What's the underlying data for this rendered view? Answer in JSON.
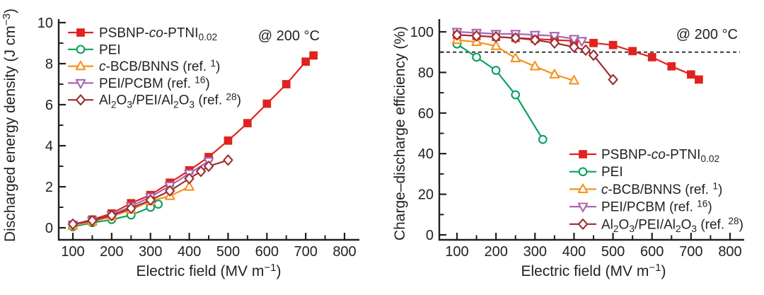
{
  "page": {
    "background": "#ffffff",
    "text_color": "#231f20"
  },
  "chart_data": [
    {
      "type": "line",
      "panel": "left",
      "annotation": "@ 200 °C",
      "xlabel": "Electric field (MV m⁻¹)",
      "xlabel_parts": [
        {
          "t": "Electric field (MV m"
        },
        {
          "t": "−1",
          "s": "sup"
        },
        {
          "t": ")"
        }
      ],
      "ylabel": "Discharged energy density (J cm⁻³)",
      "ylabel_parts": [
        {
          "t": "Discharged energy density (J cm"
        },
        {
          "t": "−3",
          "s": "sup"
        },
        {
          "t": ")"
        }
      ],
      "xlim": [
        100,
        800
      ],
      "ylim": [
        0,
        10
      ],
      "xticks": [
        100,
        200,
        300,
        400,
        500,
        600,
        700,
        800
      ],
      "xminorticks": [
        150,
        250,
        350,
        450,
        550,
        650,
        750
      ],
      "yticks": [
        0,
        2,
        4,
        6,
        8,
        10
      ],
      "yminorticks": [
        1,
        3,
        5,
        7,
        9
      ],
      "grid": false,
      "legend_position": "top-left",
      "series": [
        {
          "name": "PSBNP-co-PTNI0.02",
          "label_parts": [
            {
              "t": "PSBNP-"
            },
            {
              "t": "co",
              "i": true
            },
            {
              "t": "-PTNI"
            },
            {
              "t": "0.02",
              "s": "sub"
            }
          ],
          "color": "#e0231f",
          "marker": "square",
          "marker_filled": true,
          "x": [
            100,
            150,
            200,
            250,
            300,
            350,
            400,
            450,
            500,
            550,
            600,
            650,
            700,
            720
          ],
          "y": [
            0.15,
            0.4,
            0.7,
            1.2,
            1.6,
            2.2,
            2.8,
            3.45,
            4.25,
            5.1,
            6.05,
            7.0,
            8.1,
            8.4
          ]
        },
        {
          "name": "PEI",
          "label_parts": [
            {
              "t": "PEI"
            }
          ],
          "color": "#0aa061",
          "marker": "circle",
          "marker_filled": false,
          "x": [
            100,
            150,
            200,
            250,
            300,
            320
          ],
          "y": [
            0.05,
            0.25,
            0.4,
            0.62,
            1.0,
            1.15
          ]
        },
        {
          "name": "c-BCB/BNNS (ref. 1)",
          "label_parts": [
            {
              "t": "c",
              "i": true
            },
            {
              "t": "-BCB/BNNS (ref. "
            },
            {
              "t": "1",
              "s": "sup"
            },
            {
              "t": ")"
            }
          ],
          "color": "#f6921e",
          "marker": "triangle-up",
          "marker_filled": false,
          "x": [
            100,
            150,
            200,
            250,
            300,
            350,
            400
          ],
          "y": [
            0.1,
            0.3,
            0.55,
            0.88,
            1.3,
            1.55,
            2.0
          ]
        },
        {
          "name": "PEI/PCBM (ref. 16)",
          "label_parts": [
            {
              "t": "PEI/PCBM (ref. "
            },
            {
              "t": "16",
              "s": "sup"
            },
            {
              "t": ")"
            }
          ],
          "color": "#a868ae",
          "marker": "triangle-down",
          "marker_filled": false,
          "x": [
            100,
            150,
            200,
            250,
            300,
            350,
            400,
            450
          ],
          "y": [
            0.15,
            0.35,
            0.62,
            1.05,
            1.5,
            2.05,
            2.65,
            3.25
          ]
        },
        {
          "name": "Al2O3/PEI/Al2O3 (ref. 28)",
          "label_parts": [
            {
              "t": "Al"
            },
            {
              "t": "2",
              "s": "sub"
            },
            {
              "t": "O"
            },
            {
              "t": "3",
              "s": "sub"
            },
            {
              "t": "/PEI/Al"
            },
            {
              "t": "2",
              "s": "sub"
            },
            {
              "t": "O"
            },
            {
              "t": "3",
              "s": "sub"
            },
            {
              "t": " (ref. "
            },
            {
              "t": "28",
              "s": "sup"
            },
            {
              "t": ")"
            }
          ],
          "color": "#9c2e35",
          "marker": "diamond",
          "marker_filled": false,
          "x": [
            100,
            150,
            200,
            250,
            300,
            350,
            400,
            430,
            450,
            500
          ],
          "y": [
            0.18,
            0.35,
            0.6,
            0.95,
            1.35,
            1.8,
            2.4,
            2.75,
            3.0,
            3.3
          ]
        }
      ]
    },
    {
      "type": "line",
      "panel": "right",
      "annotation": "@ 200 °C",
      "xlabel": "Electric field (MV m⁻¹)",
      "xlabel_parts": [
        {
          "t": "Electric field (MV m"
        },
        {
          "t": "−1",
          "s": "sup"
        },
        {
          "t": ")"
        }
      ],
      "ylabel": "Charge–discharge efficiency (%)",
      "ylabel_parts": [
        {
          "t": "Charge–discharge efficiency (%)"
        }
      ],
      "xlim": [
        100,
        800
      ],
      "ylim": [
        0,
        100
      ],
      "xticks": [
        100,
        200,
        300,
        400,
        500,
        600,
        700,
        800
      ],
      "xminorticks": [
        150,
        250,
        350,
        450,
        550,
        650,
        750
      ],
      "yticks": [
        0,
        20,
        40,
        60,
        80,
        100
      ],
      "yminorticks": [
        10,
        30,
        50,
        70,
        90
      ],
      "grid": false,
      "legend_position": "bottom-right",
      "ref_line": {
        "y": 90,
        "style": "dashed",
        "color": "#2a2a2a"
      },
      "series": [
        {
          "name": "PSBNP-co-PTNI0.02",
          "label_parts": [
            {
              "t": "PSBNP-"
            },
            {
              "t": "co",
              "i": true
            },
            {
              "t": "-PTNI"
            },
            {
              "t": "0.02",
              "s": "sub"
            }
          ],
          "color": "#e0231f",
          "marker": "square",
          "marker_filled": true,
          "x": [
            100,
            150,
            200,
            250,
            300,
            350,
            400,
            450,
            500,
            550,
            600,
            650,
            700,
            720
          ],
          "y": [
            98.5,
            98,
            97.5,
            97,
            96.5,
            96,
            95.5,
            94.5,
            93.5,
            90.5,
            87.5,
            83,
            79,
            76.5
          ]
        },
        {
          "name": "PEI",
          "label_parts": [
            {
              "t": "PEI"
            }
          ],
          "color": "#0aa061",
          "marker": "circle",
          "marker_filled": false,
          "x": [
            100,
            150,
            200,
            250,
            320
          ],
          "y": [
            94,
            87.5,
            81,
            69,
            47
          ]
        },
        {
          "name": "c-BCB/BNNS (ref. 1)",
          "label_parts": [
            {
              "t": "c",
              "i": true
            },
            {
              "t": "-BCB/BNNS (ref. "
            },
            {
              "t": "1",
              "s": "sup"
            },
            {
              "t": ")"
            }
          ],
          "color": "#f6921e",
          "marker": "triangle-up",
          "marker_filled": false,
          "x": [
            100,
            150,
            200,
            250,
            300,
            350,
            400
          ],
          "y": [
            96,
            95,
            93,
            87,
            83,
            79,
            76
          ]
        },
        {
          "name": "PEI/PCBM (ref. 16)",
          "label_parts": [
            {
              "t": "PEI/PCBM (ref. "
            },
            {
              "t": "16",
              "s": "sup"
            },
            {
              "t": ")"
            }
          ],
          "color": "#a868ae",
          "marker": "triangle-down",
          "marker_filled": false,
          "x": [
            100,
            150,
            200,
            250,
            300,
            350,
            400,
            420
          ],
          "y": [
            100,
            99.5,
            99,
            99,
            98.5,
            98,
            96.5,
            95.5
          ]
        },
        {
          "name": "Al2O3/PEI/Al2O3 (ref. 28)",
          "label_parts": [
            {
              "t": "Al"
            },
            {
              "t": "2",
              "s": "sub"
            },
            {
              "t": "O"
            },
            {
              "t": "3",
              "s": "sub"
            },
            {
              "t": "/PEI/Al"
            },
            {
              "t": "2",
              "s": "sub"
            },
            {
              "t": "O"
            },
            {
              "t": "3",
              "s": "sub"
            },
            {
              "t": " (ref. "
            },
            {
              "t": "28",
              "s": "sup"
            },
            {
              "t": ")"
            }
          ],
          "color": "#9c2e35",
          "marker": "diamond",
          "marker_filled": false,
          "x": [
            100,
            150,
            200,
            250,
            300,
            350,
            400,
            430,
            450,
            500
          ],
          "y": [
            98.5,
            98,
            97.5,
            97,
            96,
            94.5,
            92.5,
            91,
            88.5,
            76.5
          ]
        }
      ]
    }
  ]
}
